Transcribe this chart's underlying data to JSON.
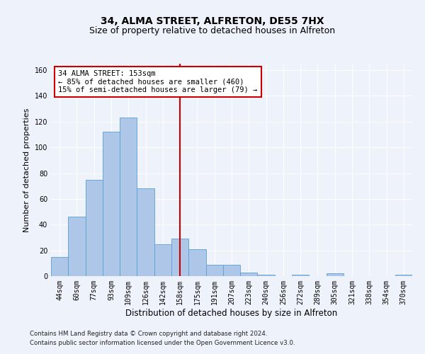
{
  "title1": "34, ALMA STREET, ALFRETON, DE55 7HX",
  "title2": "Size of property relative to detached houses in Alfreton",
  "xlabel": "Distribution of detached houses by size in Alfreton",
  "ylabel": "Number of detached properties",
  "footnote1": "Contains HM Land Registry data © Crown copyright and database right 2024.",
  "footnote2": "Contains public sector information licensed under the Open Government Licence v3.0.",
  "bar_labels": [
    "44sqm",
    "60sqm",
    "77sqm",
    "93sqm",
    "109sqm",
    "126sqm",
    "142sqm",
    "158sqm",
    "175sqm",
    "191sqm",
    "207sqm",
    "223sqm",
    "240sqm",
    "256sqm",
    "272sqm",
    "289sqm",
    "305sqm",
    "321sqm",
    "338sqm",
    "354sqm",
    "370sqm"
  ],
  "bar_values": [
    15,
    46,
    75,
    112,
    123,
    68,
    25,
    29,
    21,
    9,
    9,
    3,
    1,
    0,
    1,
    0,
    2,
    0,
    0,
    0,
    1
  ],
  "bar_color": "#aec6e8",
  "bar_edge_color": "#5a9fd4",
  "vline_x": 7.0,
  "vline_color": "#cc0000",
  "ylim": [
    0,
    165
  ],
  "yticks": [
    0,
    20,
    40,
    60,
    80,
    100,
    120,
    140,
    160
  ],
  "annotation_line1": "34 ALMA STREET: 153sqm",
  "annotation_line2": "← 85% of detached houses are smaller (460)",
  "annotation_line3": "15% of semi-detached houses are larger (79) →",
  "annotation_box_color": "#ffffff",
  "annotation_box_edge": "#cc0000",
  "title1_fontsize": 10,
  "title2_fontsize": 9,
  "xlabel_fontsize": 8.5,
  "ylabel_fontsize": 8,
  "tick_fontsize": 7,
  "annotation_fontsize": 7.5,
  "background_color": "#eef2fa"
}
